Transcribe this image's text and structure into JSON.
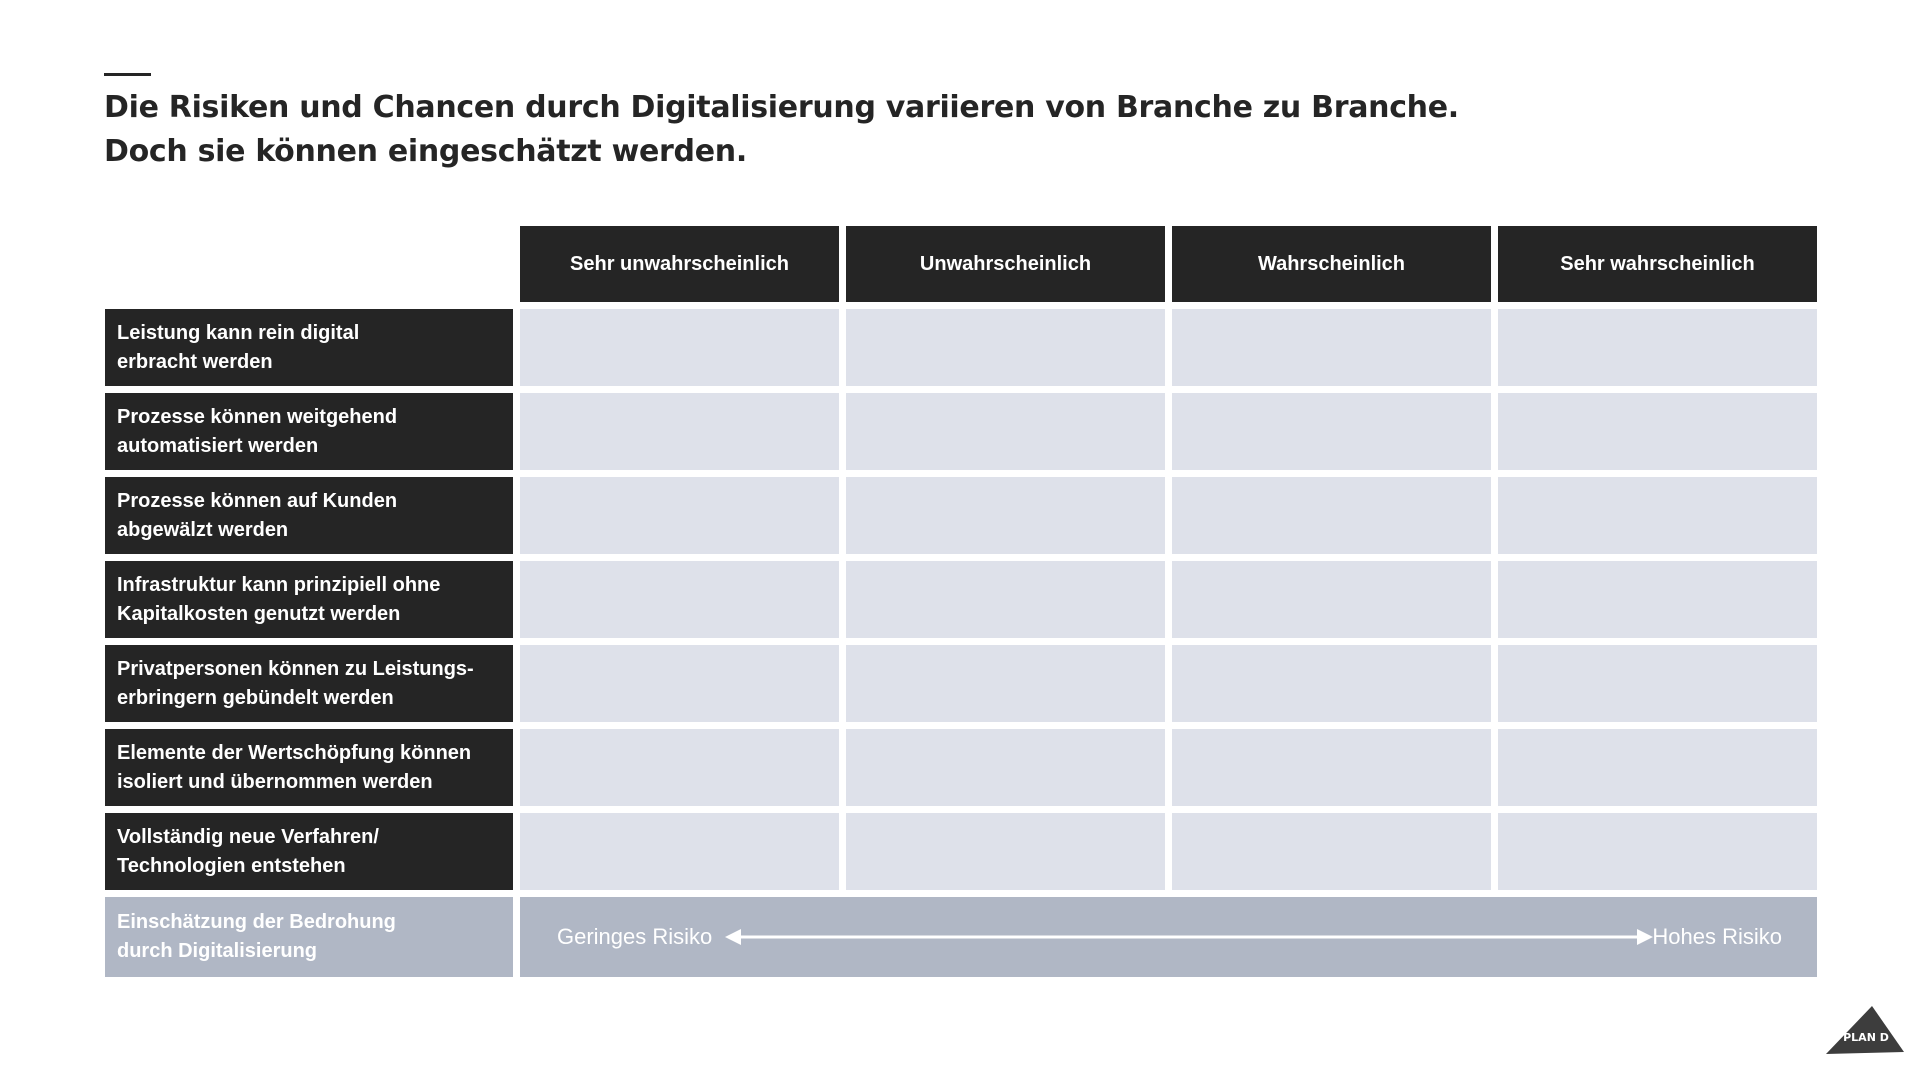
{
  "slide": {
    "title_line1": "Die Risiken und Chancen durch Digitalisierung variieren von Branche zu Branche.",
    "title_line2": "Doch sie können eingeschätzt werden."
  },
  "matrix": {
    "columns": [
      "Sehr unwahrscheinlich",
      "Unwahrscheinlich",
      "Wahrscheinlich",
      "Sehr wahrscheinlich"
    ],
    "rows": [
      {
        "line1": "Leistung kann rein digital",
        "line2": "erbracht werden"
      },
      {
        "line1": "Prozesse können weitgehend",
        "line2": "automatisiert werden"
      },
      {
        "line1": "Prozesse können auf Kunden",
        "line2": "abgewälzt werden"
      },
      {
        "line1": "Infrastruktur kann prinzipiell ohne",
        "line2": "Kapitalkosten genutzt werden"
      },
      {
        "line1": "Privatpersonen können zu Leistungs-",
        "line2": "erbringern gebündelt werden"
      },
      {
        "line1": "Elemente der Wertschöpfung können",
        "line2": "isoliert und übernommen werden"
      },
      {
        "line1": "Vollständig neue Verfahren/",
        "line2": "Technologien entstehen"
      }
    ],
    "assessment": {
      "line1": "Einschätzung der Bedrohung",
      "line2": "durch Digitalisierung",
      "low_label": "Geringes Risiko",
      "high_label": "Hohes Risiko"
    }
  },
  "logo": {
    "text": "PLAN D"
  },
  "colors": {
    "dark": "#252525",
    "cell": "#dee1ea",
    "assessment": "#b0b7c5"
  }
}
